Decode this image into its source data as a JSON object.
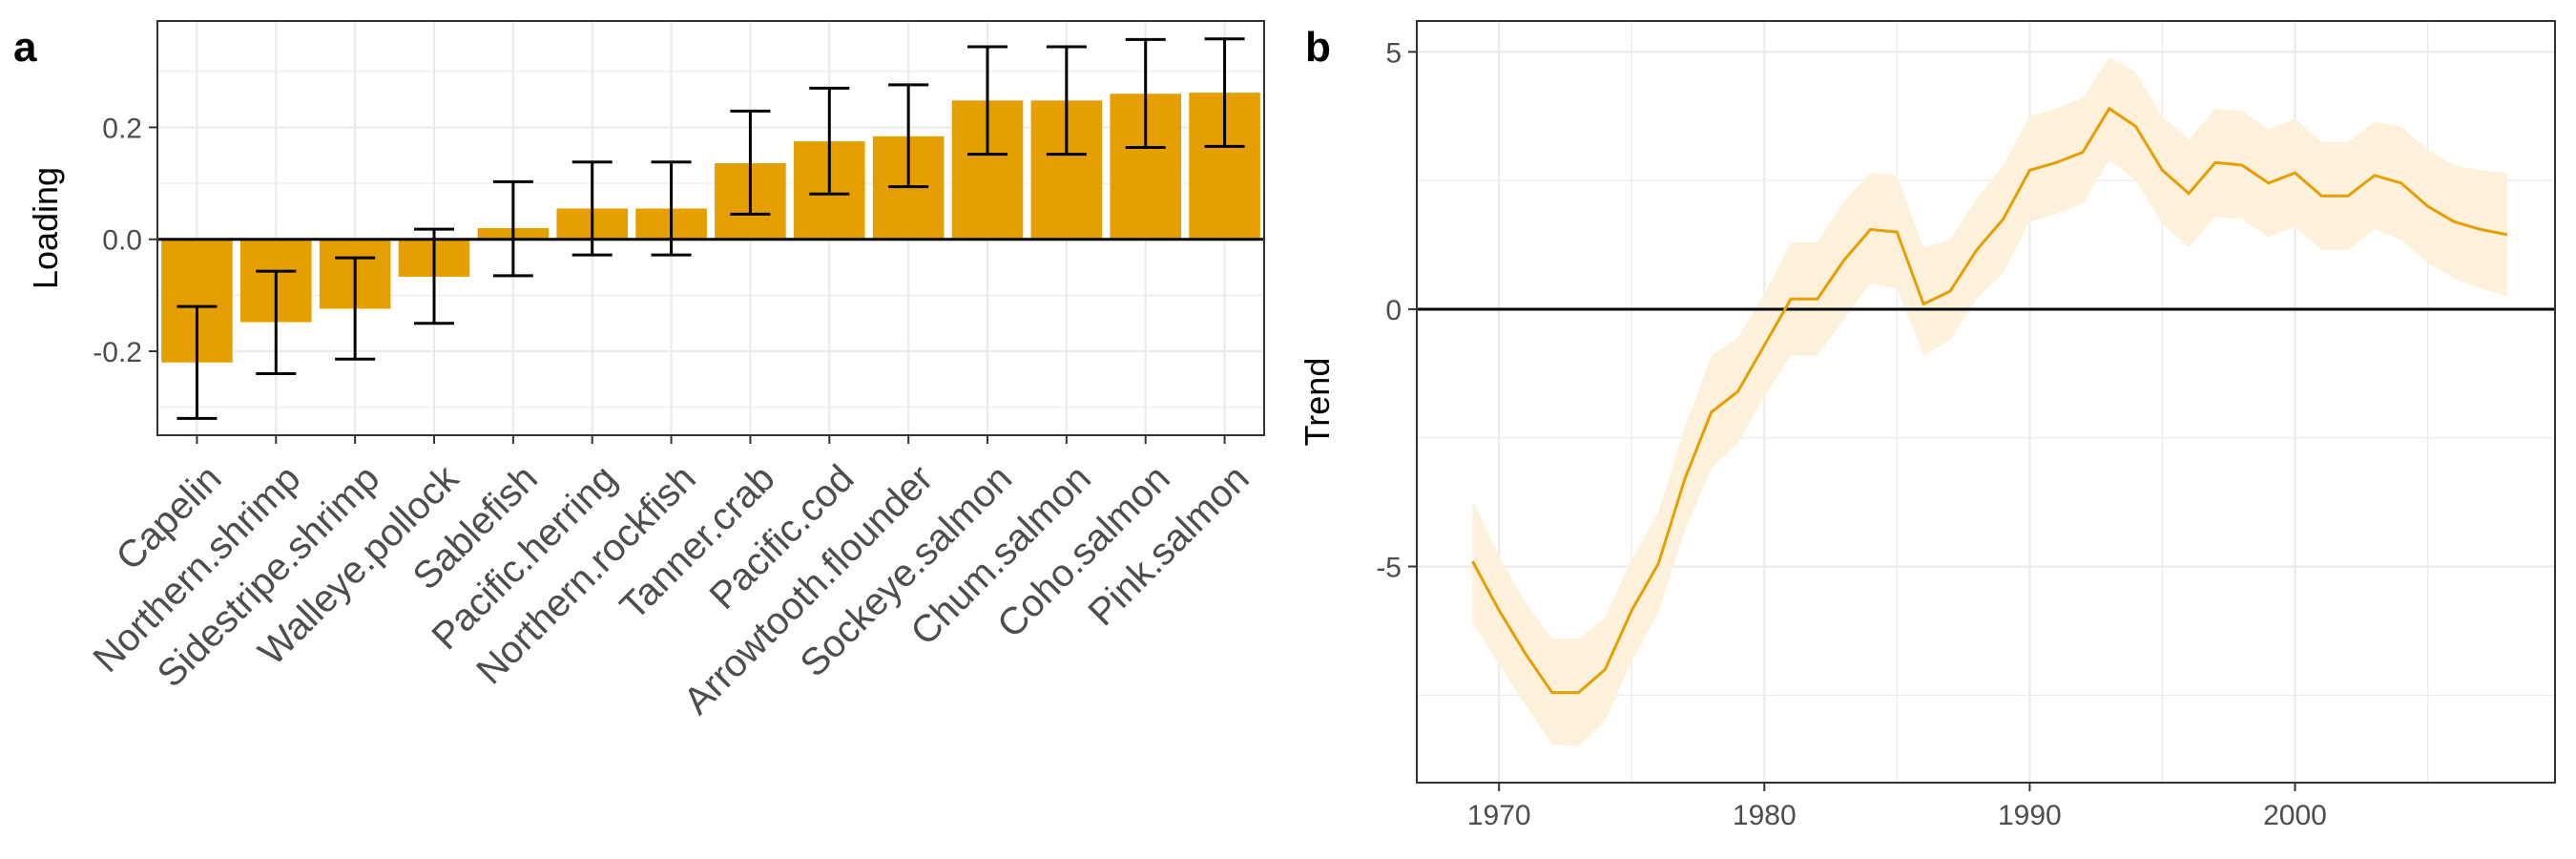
{
  "colors": {
    "bar_fill": "#E69F00",
    "trend_line": "#E69F00",
    "ribbon_fill": "#FDF1DC",
    "grid": "#EBEBEB",
    "axis_text": "#4D4D4D",
    "zero_line": "#000000"
  },
  "chart_data": [
    {
      "panel_label": "a",
      "type": "bar",
      "xlabel": "",
      "ylabel": "Loading",
      "ylim": [
        -0.35,
        0.39
      ],
      "yticks": [
        -0.2,
        0.0,
        0.2
      ],
      "ytick_labels": [
        "-0.2",
        "0.0",
        "0.2"
      ],
      "grid": true,
      "error_bars": true,
      "categories": [
        "Capelin",
        "Northern.shrimp",
        "Sidestripe.shrimp",
        "Walleye.pollock",
        "Sablefish",
        "Pacific.herring",
        "Northern.rockfish",
        "Tanner.crab",
        "Pacific.cod",
        "Arrowtooth.flounder",
        "Sockeye.salmon",
        "Chum.salmon",
        "Coho.salmon",
        "Pink.salmon"
      ],
      "values": [
        -0.22,
        -0.148,
        -0.124,
        -0.067,
        0.02,
        0.055,
        0.055,
        0.136,
        0.175,
        0.184,
        0.248,
        0.248,
        0.26,
        0.262
      ],
      "lower": [
        -0.32,
        -0.24,
        -0.214,
        -0.15,
        -0.065,
        -0.028,
        -0.028,
        0.045,
        0.081,
        0.094,
        0.152,
        0.152,
        0.164,
        0.166
      ],
      "upper": [
        -0.12,
        -0.057,
        -0.033,
        0.018,
        0.103,
        0.138,
        0.138,
        0.229,
        0.27,
        0.276,
        0.344,
        0.344,
        0.357,
        0.358
      ]
    },
    {
      "panel_label": "b",
      "type": "line",
      "xlabel": "",
      "ylabel": "Trend",
      "xlim": [
        1966.9,
        2009.8
      ],
      "ylim": [
        -9.2,
        5.6
      ],
      "xticks": [
        1970,
        1980,
        1990,
        2000
      ],
      "xtick_labels": [
        "1970",
        "1980",
        "1990",
        "2000"
      ],
      "yticks": [
        -5,
        0,
        5
      ],
      "ytick_labels": [
        "-5",
        "0",
        "5"
      ],
      "grid": true,
      "ribbon": true,
      "x": [
        1969,
        1970,
        1971,
        1972,
        1973,
        1974,
        1975,
        1976,
        1977,
        1978,
        1979,
        1980,
        1981,
        1982,
        1983,
        1984,
        1985,
        1986,
        1987,
        1988,
        1989,
        1990,
        1991,
        1992,
        1993,
        1994,
        1995,
        1996,
        1997,
        1998,
        1999,
        2000,
        2001,
        2002,
        2003,
        2004,
        2005,
        2006,
        2007,
        2008
      ],
      "y": [
        -4.9,
        -5.85,
        -6.7,
        -7.45,
        -7.45,
        -7.0,
        -5.85,
        -4.95,
        -3.3,
        -2.0,
        -1.6,
        -0.7,
        0.2,
        0.2,
        0.95,
        1.55,
        1.5,
        0.1,
        0.35,
        1.15,
        1.75,
        2.7,
        2.85,
        3.05,
        3.9,
        3.55,
        2.7,
        2.25,
        2.85,
        2.8,
        2.45,
        2.65,
        2.2,
        2.2,
        2.6,
        2.45,
        2.0,
        1.7,
        1.55,
        1.45
      ],
      "lower": [
        -6.1,
        -6.9,
        -7.7,
        -8.45,
        -8.5,
        -8.0,
        -6.85,
        -5.9,
        -4.3,
        -3.1,
        -2.6,
        -1.7,
        -0.9,
        -0.9,
        -0.2,
        0.5,
        0.4,
        -0.9,
        -0.6,
        0.2,
        0.7,
        1.7,
        1.85,
        2.05,
        2.9,
        2.5,
        1.65,
        1.2,
        1.8,
        1.75,
        1.4,
        1.6,
        1.15,
        1.15,
        1.55,
        1.35,
        0.9,
        0.6,
        0.4,
        0.25
      ],
      "upper": [
        -3.7,
        -4.8,
        -5.7,
        -6.4,
        -6.4,
        -6.0,
        -4.85,
        -3.95,
        -2.3,
        -0.9,
        -0.55,
        0.3,
        1.3,
        1.3,
        2.1,
        2.65,
        2.6,
        1.2,
        1.35,
        2.15,
        2.8,
        3.75,
        3.9,
        4.1,
        4.9,
        4.6,
        3.75,
        3.3,
        3.9,
        3.85,
        3.5,
        3.7,
        3.25,
        3.25,
        3.65,
        3.55,
        3.1,
        2.8,
        2.7,
        2.65
      ]
    }
  ]
}
